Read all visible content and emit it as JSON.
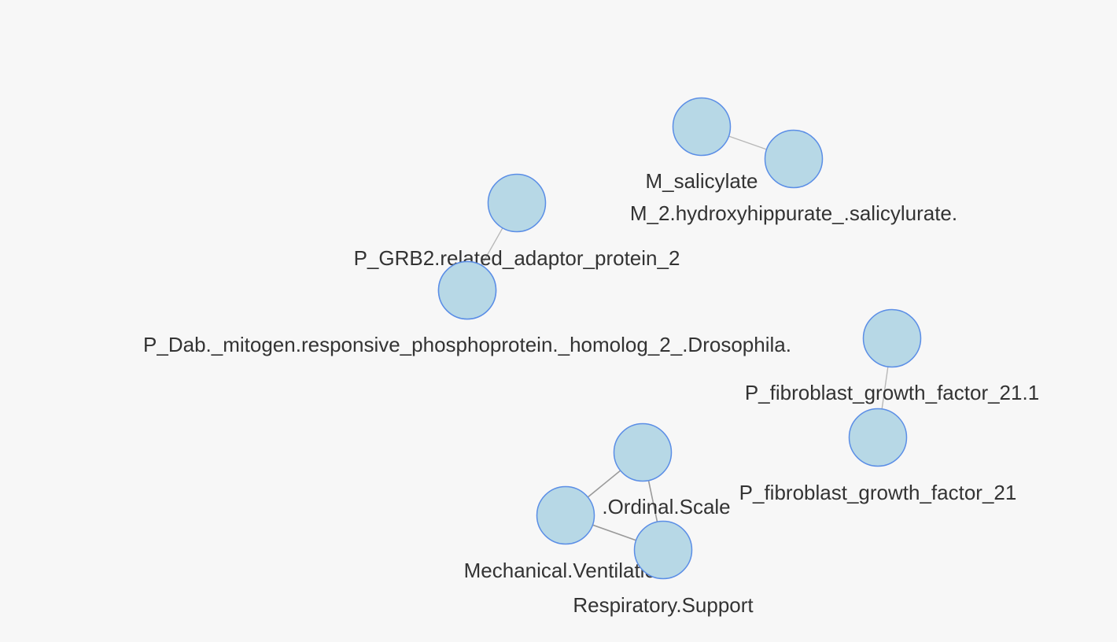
{
  "graph": {
    "node_color": "#b7d8e6",
    "node_border_color": "#5b8ee6",
    "edge_color": "#b8b8b8",
    "nodes": [
      {
        "id": "salicylate",
        "label": "M_salicylate"
      },
      {
        "id": "salicylurate",
        "label": "M_2.hydroxyhippurate_.salicylurate."
      },
      {
        "id": "grb2",
        "label": "P_GRB2.related_adaptor_protein_2"
      },
      {
        "id": "dab",
        "label": "P_Dab._mitogen.responsive_phosphoprotein._homolog_2_.Drosophila."
      },
      {
        "id": "fgf21_1",
        "label": "P_fibroblast_growth_factor_21.1"
      },
      {
        "id": "fgf21",
        "label": "P_fibroblast_growth_factor_21"
      },
      {
        "id": "ordinal",
        "label": ".Ordinal.Scale"
      },
      {
        "id": "mech_vent",
        "label": "Mechanical.Ventilation"
      },
      {
        "id": "resp_support",
        "label": "Respiratory.Support"
      }
    ],
    "edges": [
      {
        "source": "salicylate",
        "target": "salicylurate"
      },
      {
        "source": "grb2",
        "target": "dab"
      },
      {
        "source": "fgf21_1",
        "target": "fgf21"
      },
      {
        "source": "ordinal",
        "target": "mech_vent"
      },
      {
        "source": "ordinal",
        "target": "resp_support"
      },
      {
        "source": "mech_vent",
        "target": "resp_support"
      }
    ]
  }
}
